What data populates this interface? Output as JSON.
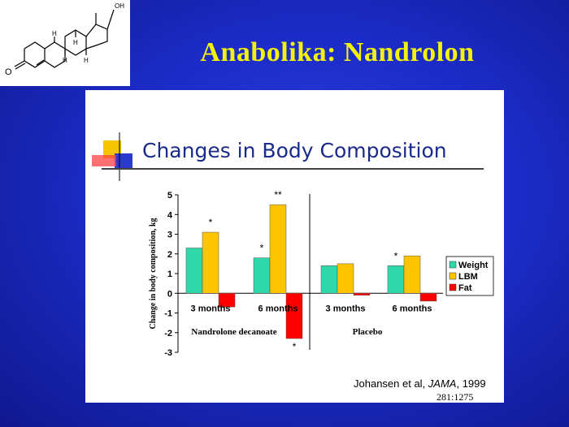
{
  "slide": {
    "title": "Anabolika: Nandrolon",
    "molecule": {
      "labels": {
        "oh": "OH",
        "h": "H",
        "o": "O"
      }
    }
  },
  "chart_data": {
    "type": "bar",
    "title": "Changes in Body Composition",
    "ylabel": "Change in body composition, kg",
    "xlabel": "",
    "ylim": [
      -3,
      5
    ],
    "yticks": [
      5,
      4,
      3,
      2,
      1,
      0,
      -1,
      -2,
      -3
    ],
    "grid": false,
    "legend_position": "right",
    "categories": [
      "3 months",
      "6 months",
      "3 months",
      "6 months"
    ],
    "groups": [
      {
        "label": "Nandrolone decanoate",
        "categories": [
          0,
          1
        ]
      },
      {
        "label": "Placebo",
        "categories": [
          2,
          3
        ]
      }
    ],
    "series": [
      {
        "name": "Weight",
        "color": "#2ed8a8",
        "values": [
          2.3,
          1.8,
          1.4,
          1.4
        ]
      },
      {
        "name": "LBM",
        "color": "#ffc400",
        "values": [
          3.1,
          4.5,
          1.5,
          1.9
        ]
      },
      {
        "name": "Fat",
        "color": "#ff0000",
        "values": [
          -0.7,
          -2.3,
          -0.1,
          -0.4
        ]
      }
    ],
    "annotations": [
      {
        "category": 0,
        "series": "LBM",
        "text": "*"
      },
      {
        "category": 1,
        "series": "Weight",
        "text": "*"
      },
      {
        "category": 1,
        "series": "LBM",
        "text": "**"
      },
      {
        "category": 1,
        "series": "Fat",
        "text": "*"
      },
      {
        "category": 3,
        "series": "Weight",
        "text": "*"
      }
    ]
  },
  "citation": {
    "authors": "Johansen et al, ",
    "journal": "JAMA",
    "year": ", 1999",
    "ref": "281:1275"
  }
}
